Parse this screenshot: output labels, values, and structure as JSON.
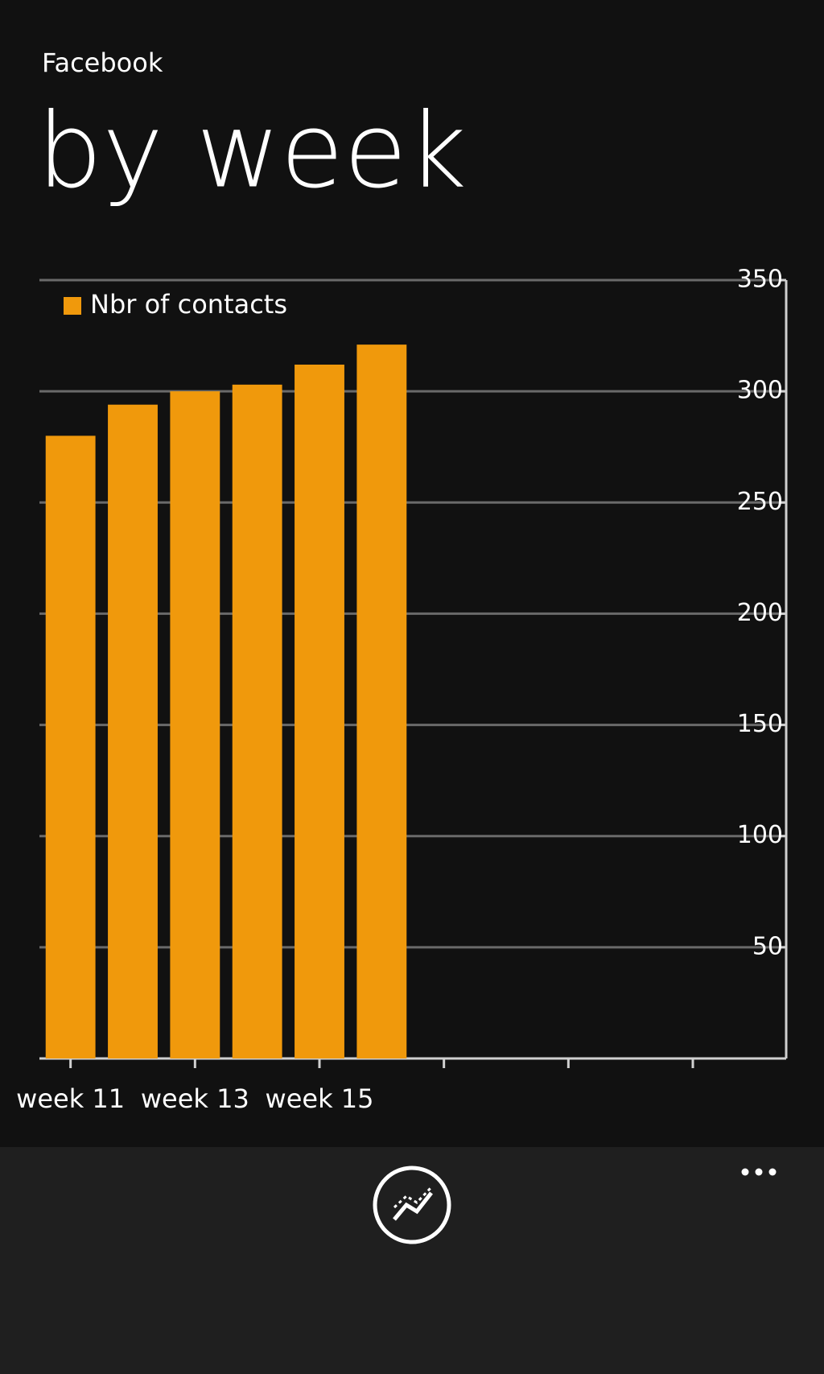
{
  "app": {
    "subtitle": "Facebook",
    "title": "by week"
  },
  "chart_data": {
    "type": "bar",
    "categories": [
      "week 11",
      null,
      "week 13",
      null,
      "week 15",
      null,
      null,
      null,
      null,
      null,
      null,
      null
    ],
    "series": [
      {
        "name": "Nbr of contacts",
        "color": "#f0990c",
        "values": [
          280,
          294,
          300,
          303,
          312,
          321,
          null,
          null,
          null,
          null,
          null,
          null
        ]
      }
    ],
    "ylim": [
      0,
      350
    ],
    "yticks": [
      50,
      100,
      150,
      200,
      250,
      300,
      350
    ],
    "grid": true,
    "legend": "top-left"
  }
}
